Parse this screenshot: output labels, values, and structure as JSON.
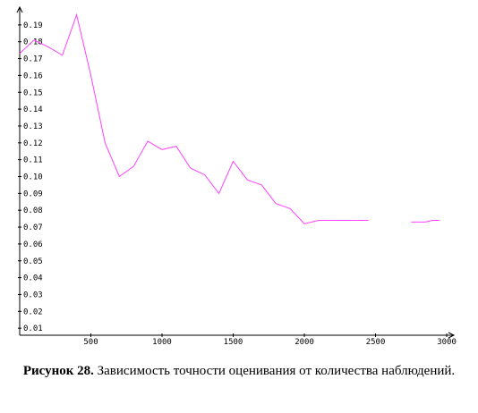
{
  "chart_data": {
    "type": "line",
    "title": "",
    "xlabel": "",
    "ylabel": "",
    "xlim": [
      0,
      3050
    ],
    "ylim": [
      0,
      0.2
    ],
    "x_ticks": [
      500,
      1000,
      1500,
      2000,
      2500,
      3000
    ],
    "x_tick_labels": [
      "500",
      "1000",
      "1500",
      "2000",
      "2500",
      "3000"
    ],
    "y_ticks": [
      0.01,
      0.02,
      0.03,
      0.04,
      0.05,
      0.06,
      0.07,
      0.08,
      0.09,
      0.1,
      0.11,
      0.12,
      0.13,
      0.14,
      0.15,
      0.16,
      0.17,
      0.18,
      0.19
    ],
    "y_tick_labels": [
      "0.01",
      "0.02",
      "0.03",
      "0.04",
      "0.05",
      "0.06",
      "0.07",
      "0.08",
      "0.09",
      "0.10",
      "0.11",
      "0.12",
      "0.13",
      "0.14",
      "0.15",
      "0.16",
      "0.17",
      "0.18",
      "0.19"
    ],
    "grid": false,
    "line_color": "#ff40ff",
    "series": [
      {
        "segments": [
          [
            [
              0,
              0.173
            ],
            [
              100,
              0.181
            ],
            [
              200,
              0.177
            ],
            [
              300,
              0.172
            ],
            [
              400,
              0.196
            ],
            [
              500,
              0.16
            ],
            [
              600,
              0.12
            ],
            [
              700,
              0.1
            ],
            [
              800,
              0.106
            ],
            [
              900,
              0.121
            ],
            [
              1000,
              0.116
            ],
            [
              1100,
              0.118
            ],
            [
              1200,
              0.105
            ],
            [
              1300,
              0.101
            ],
            [
              1400,
              0.09
            ],
            [
              1500,
              0.109
            ],
            [
              1600,
              0.098
            ],
            [
              1700,
              0.095
            ],
            [
              1800,
              0.084
            ],
            [
              1900,
              0.081
            ],
            [
              2000,
              0.072
            ],
            [
              2100,
              0.074
            ],
            [
              2200,
              0.074
            ],
            [
              2300,
              0.074
            ],
            [
              2400,
              0.074
            ],
            [
              2450,
              0.074
            ]
          ],
          [
            [
              2750,
              0.073
            ],
            [
              2850,
              0.073
            ],
            [
              2900,
              0.074
            ],
            [
              2950,
              0.074
            ]
          ]
        ]
      }
    ]
  },
  "caption": {
    "label": "Рисунок 28.",
    "text": "Зависимость точности оценивания от количества наблюдений."
  }
}
